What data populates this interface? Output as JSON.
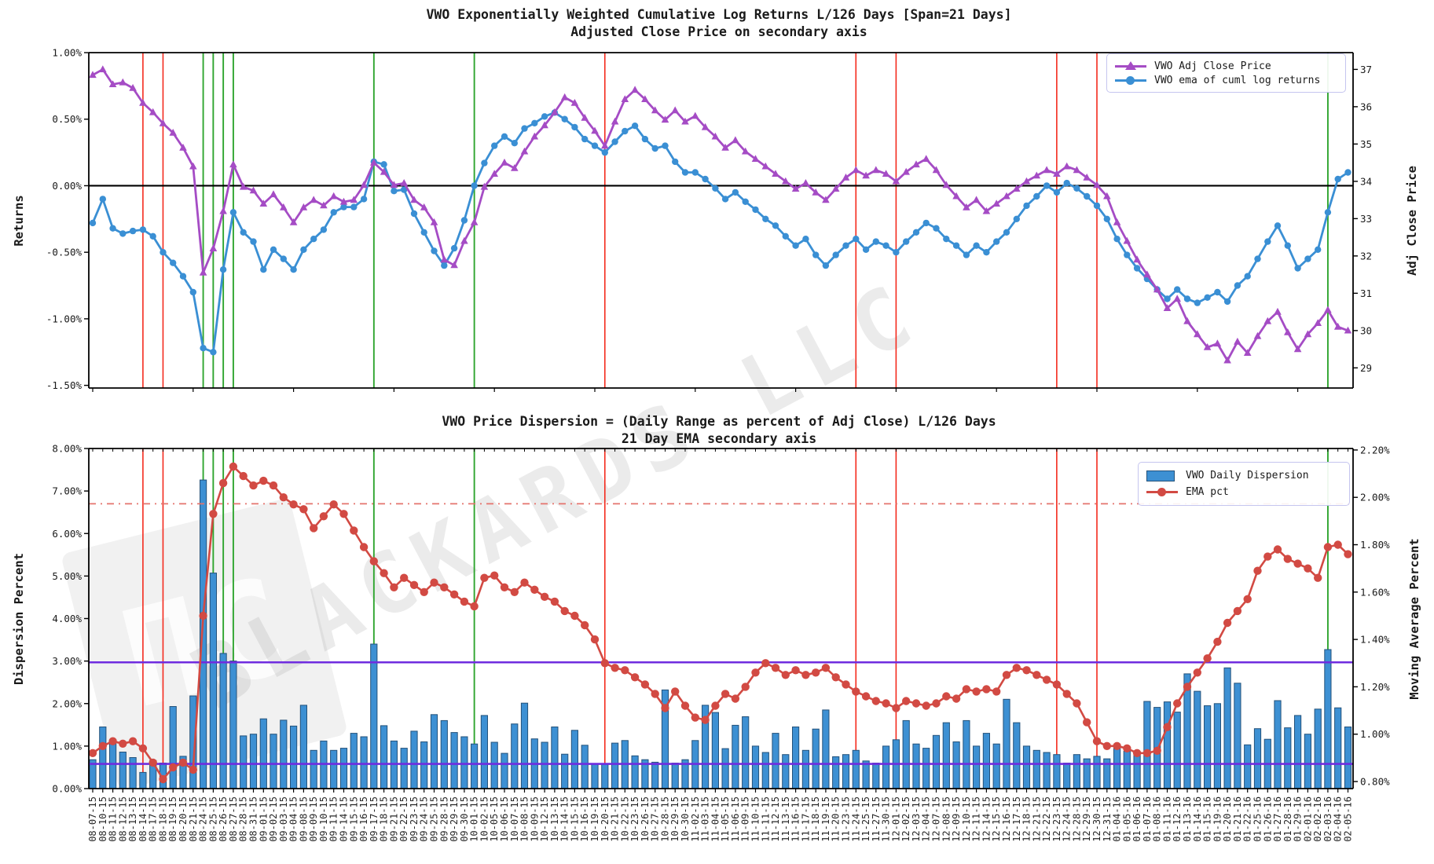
{
  "watermark": {
    "text": "BLACKARDS LLC",
    "logo_glyph": "ΠC"
  },
  "colors": {
    "price_line": "#a54cc5",
    "returns_ema_line": "#3a8fd4",
    "bars_fill": "#3d90d3",
    "bars_edge": "#24527a",
    "ema_pct_line": "#d24a43",
    "vline_red": "#f42a1d",
    "vline_green": "#2fa52f",
    "hline_dashdot": "#e4736c",
    "hline_purple": "#6f2cdf",
    "zero_line": "#000000",
    "text": "#1a1a1a"
  },
  "top_chart": {
    "title1": "VWO Exponentially Weighted Cumulative Log Returns L/126 Days [Span=21 Days]",
    "title2": "Adjusted Close Price on secondary axis",
    "ylabel_left": "Returns",
    "ylabel_right": "Adj Close Price",
    "yticks_left": {
      "labels": [
        "1.00%",
        "0.50%",
        "0.00%",
        "-0.50%",
        "-1.00%",
        "-1.50%"
      ],
      "values": [
        1.0,
        0.5,
        0.0,
        -0.5,
        -1.0,
        -1.5
      ]
    },
    "yticks_right": {
      "labels": [
        "37",
        "36",
        "35",
        "34",
        "33",
        "32",
        "31",
        "30",
        "29"
      ],
      "values": [
        37,
        36,
        35,
        34,
        33,
        32,
        31,
        30,
        29
      ]
    },
    "legend": [
      "VWO Adj Close Price",
      "VWO ema of cuml log returns"
    ]
  },
  "bottom_chart": {
    "title1": "VWO Price Dispersion = (Daily Range as percent of Adj Close) L/126 Days",
    "title2": "21 Day EMA secondary axis",
    "ylabel_left": "Dispersion Percent",
    "ylabel_right": "Moving Average Percent",
    "yticks_left": {
      "labels": [
        "8.00%",
        "7.00%",
        "6.00%",
        "5.00%",
        "4.00%",
        "3.00%",
        "2.00%",
        "1.00%",
        "0.00%"
      ],
      "values": [
        8,
        7,
        6,
        5,
        4,
        3,
        2,
        1,
        0
      ]
    },
    "yticks_right": {
      "labels": [
        "2.20%",
        "2.00%",
        "1.80%",
        "1.60%",
        "1.40%",
        "1.20%",
        "1.00%",
        "0.80%"
      ],
      "values": [
        2.2,
        2.0,
        1.8,
        1.6,
        1.4,
        1.2,
        1.0,
        0.8
      ]
    },
    "legend": [
      "VWO Daily Dispersion",
      "EMA pct"
    ]
  },
  "chart_data": [
    {
      "type": "line",
      "title": "VWO Exponentially Weighted Cumulative Log Returns L/126 Days [Span=21 Days] / Adjusted Close Price on secondary axis",
      "xlabel": "",
      "ylabel": "Returns",
      "ylabel_right": "Adj Close Price",
      "ylim_left": [
        -1.52,
        1.0
      ],
      "ylim_right": [
        28.46,
        37.45
      ],
      "grid": false,
      "legend_position": "upper right",
      "series": [
        {
          "name": "VWO Adj Close Price",
          "axis": "right",
          "marker": "triangle",
          "values": [
            36.85,
            37.0,
            36.6,
            36.65,
            36.5,
            36.1,
            35.85,
            35.55,
            35.3,
            34.9,
            34.4,
            31.55,
            32.2,
            33.2,
            34.45,
            33.85,
            33.75,
            33.4,
            33.65,
            33.3,
            32.9,
            33.3,
            33.5,
            33.35,
            33.6,
            33.45,
            33.5,
            33.9,
            34.5,
            34.25,
            33.9,
            33.95,
            33.5,
            33.3,
            32.9,
            31.9,
            31.75,
            32.4,
            32.9,
            33.85,
            34.2,
            34.5,
            34.35,
            34.8,
            35.2,
            35.5,
            35.85,
            36.25,
            36.1,
            35.7,
            35.35,
            34.95,
            35.6,
            36.2,
            36.45,
            36.2,
            35.9,
            35.65,
            35.9,
            35.6,
            35.75,
            35.45,
            35.2,
            34.9,
            35.1,
            34.8,
            34.6,
            34.4,
            34.2,
            34.0,
            33.8,
            33.95,
            33.7,
            33.5,
            33.8,
            34.1,
            34.3,
            34.15,
            34.3,
            34.2,
            34.0,
            34.25,
            34.45,
            34.6,
            34.3,
            33.9,
            33.6,
            33.3,
            33.5,
            33.2,
            33.4,
            33.6,
            33.8,
            34.0,
            34.15,
            34.3,
            34.2,
            34.4,
            34.3,
            34.1,
            33.9,
            33.6,
            32.9,
            32.4,
            31.9,
            31.5,
            31.1,
            30.6,
            30.85,
            30.25,
            29.9,
            29.55,
            29.65,
            29.2,
            29.7,
            29.4,
            29.85,
            30.25,
            30.5,
            29.95,
            29.5,
            29.9,
            30.2,
            30.55,
            30.1,
            30.0
          ]
        },
        {
          "name": "VWO ema of cuml log returns",
          "axis": "left",
          "marker": "circle",
          "values": [
            -0.28,
            -0.1,
            -0.32,
            -0.36,
            -0.34,
            -0.33,
            -0.38,
            -0.5,
            -0.58,
            -0.68,
            -0.8,
            -1.22,
            -1.25,
            -0.63,
            -0.2,
            -0.35,
            -0.42,
            -0.63,
            -0.48,
            -0.55,
            -0.63,
            -0.48,
            -0.4,
            -0.33,
            -0.2,
            -0.16,
            -0.16,
            -0.1,
            0.18,
            0.16,
            -0.04,
            -0.03,
            -0.21,
            -0.35,
            -0.49,
            -0.6,
            -0.47,
            -0.26,
            0.0,
            0.17,
            0.3,
            0.37,
            0.32,
            0.43,
            0.47,
            0.52,
            0.55,
            0.5,
            0.44,
            0.35,
            0.3,
            0.25,
            0.33,
            0.41,
            0.45,
            0.35,
            0.28,
            0.3,
            0.18,
            0.1,
            0.1,
            0.05,
            -0.02,
            -0.1,
            -0.05,
            -0.12,
            -0.18,
            -0.25,
            -0.3,
            -0.38,
            -0.45,
            -0.4,
            -0.52,
            -0.6,
            -0.52,
            -0.45,
            -0.4,
            -0.48,
            -0.42,
            -0.45,
            -0.5,
            -0.42,
            -0.35,
            -0.28,
            -0.32,
            -0.4,
            -0.45,
            -0.52,
            -0.45,
            -0.5,
            -0.42,
            -0.35,
            -0.25,
            -0.15,
            -0.08,
            0.0,
            -0.05,
            0.02,
            -0.02,
            -0.08,
            -0.15,
            -0.25,
            -0.4,
            -0.52,
            -0.62,
            -0.7,
            -0.78,
            -0.85,
            -0.78,
            -0.85,
            -0.88,
            -0.84,
            -0.8,
            -0.87,
            -0.75,
            -0.68,
            -0.55,
            -0.42,
            -0.3,
            -0.45,
            -0.62,
            -0.55,
            -0.48,
            -0.2,
            0.05,
            0.1
          ]
        }
      ],
      "hlines": [
        {
          "value": 0.0,
          "axis": "left",
          "style": "solid",
          "color": "#000000"
        }
      ]
    },
    {
      "type": "bar+line",
      "title": "VWO Price Dispersion = (Daily Range as percent of Adj Close) L/126 Days / 21 Day EMA secondary axis",
      "xlabel": "",
      "ylabel": "Dispersion Percent",
      "ylabel_right": "Moving Average Percent",
      "ylim_left": [
        0,
        8.0
      ],
      "ylim_right": [
        0.77,
        2.206
      ],
      "grid": false,
      "legend_position": "upper right",
      "series": [
        {
          "name": "VWO Daily Dispersion",
          "axis": "left",
          "kind": "bar",
          "values": [
            0.68,
            1.45,
            1.15,
            0.86,
            0.73,
            0.38,
            0.66,
            0.6,
            1.93,
            0.76,
            2.18,
            7.26,
            5.07,
            3.18,
            3.0,
            1.24,
            1.28,
            1.64,
            1.28,
            1.61,
            1.47,
            1.96,
            0.9,
            1.12,
            0.9,
            0.95,
            1.3,
            1.22,
            3.4,
            1.48,
            1.12,
            0.95,
            1.35,
            1.1,
            1.74,
            1.6,
            1.32,
            1.22,
            1.05,
            1.72,
            1.09,
            0.83,
            1.52,
            2.01,
            1.17,
            1.09,
            1.45,
            0.81,
            1.37,
            1.02,
            0.58,
            0.58,
            1.07,
            1.13,
            0.77,
            0.68,
            0.62,
            2.32,
            0.6,
            0.68,
            1.13,
            1.96,
            1.79,
            0.94,
            1.49,
            1.69,
            1.0,
            0.85,
            1.3,
            0.8,
            1.45,
            0.9,
            1.4,
            1.85,
            0.75,
            0.8,
            0.9,
            0.65,
            0.6,
            1.0,
            1.15,
            1.6,
            1.05,
            0.95,
            1.25,
            1.55,
            1.1,
            1.6,
            1.0,
            1.3,
            1.05,
            2.1,
            1.55,
            1.0,
            0.9,
            0.85,
            0.8,
            0.6,
            0.8,
            0.7,
            0.76,
            0.7,
            0.97,
            0.88,
            0.83,
            2.05,
            1.91,
            2.04,
            1.8,
            2.7,
            2.29,
            1.95,
            2.0,
            2.84,
            2.48,
            1.03,
            1.41,
            1.16,
            2.07,
            1.43,
            1.72,
            1.28,
            1.87,
            3.27,
            1.9,
            1.45
          ]
        },
        {
          "name": "EMA pct",
          "axis": "right",
          "kind": "line",
          "marker": "circle",
          "values": [
            0.92,
            0.95,
            0.97,
            0.96,
            0.97,
            0.94,
            0.88,
            0.81,
            0.86,
            0.88,
            0.85,
            1.5,
            1.93,
            2.06,
            2.13,
            2.09,
            2.05,
            2.07,
            2.05,
            2.0,
            1.97,
            1.95,
            1.87,
            1.92,
            1.97,
            1.93,
            1.86,
            1.79,
            1.73,
            1.68,
            1.62,
            1.66,
            1.63,
            1.6,
            1.64,
            1.62,
            1.59,
            1.56,
            1.54,
            1.66,
            1.67,
            1.62,
            1.6,
            1.64,
            1.61,
            1.58,
            1.56,
            1.52,
            1.5,
            1.46,
            1.4,
            1.3,
            1.28,
            1.27,
            1.24,
            1.21,
            1.17,
            1.11,
            1.18,
            1.12,
            1.07,
            1.06,
            1.12,
            1.17,
            1.15,
            1.2,
            1.26,
            1.3,
            1.28,
            1.25,
            1.27,
            1.25,
            1.26,
            1.28,
            1.24,
            1.21,
            1.18,
            1.16,
            1.14,
            1.13,
            1.11,
            1.14,
            1.13,
            1.12,
            1.13,
            1.16,
            1.15,
            1.19,
            1.18,
            1.19,
            1.18,
            1.25,
            1.28,
            1.27,
            1.25,
            1.23,
            1.21,
            1.17,
            1.13,
            1.05,
            0.97,
            0.95,
            0.95,
            0.94,
            0.92,
            0.92,
            0.93,
            1.03,
            1.13,
            1.2,
            1.26,
            1.32,
            1.39,
            1.47,
            1.52,
            1.57,
            1.69,
            1.75,
            1.78,
            1.74,
            1.72,
            1.7,
            1.66,
            1.79,
            1.8,
            1.76
          ]
        }
      ],
      "hlines": [
        {
          "value": 6.7,
          "axis": "left",
          "style": "dashdot",
          "color": "#e4736c"
        },
        {
          "value": 2.97,
          "axis": "left",
          "style": "solid",
          "color": "#6f2cdf"
        },
        {
          "value": 0.58,
          "axis": "left",
          "style": "solid",
          "color": "#6f2cdf"
        }
      ]
    }
  ],
  "x_dates": [
    "08-07-15",
    "08-10-15",
    "08-11-15",
    "08-12-15",
    "08-13-15",
    "08-14-15",
    "08-17-15",
    "08-18-15",
    "08-19-15",
    "08-20-15",
    "08-21-15",
    "08-24-15",
    "08-25-15",
    "08-26-15",
    "08-27-15",
    "08-28-15",
    "08-31-15",
    "09-01-15",
    "09-02-15",
    "09-03-15",
    "09-04-15",
    "09-08-15",
    "09-09-15",
    "09-10-15",
    "09-11-15",
    "09-14-15",
    "09-15-15",
    "09-16-15",
    "09-17-15",
    "09-18-15",
    "09-21-15",
    "09-22-15",
    "09-23-15",
    "09-24-15",
    "09-25-15",
    "09-28-15",
    "09-29-15",
    "09-30-15",
    "10-01-15",
    "10-02-15",
    "10-05-15",
    "10-06-15",
    "10-07-15",
    "10-08-15",
    "10-09-15",
    "10-12-15",
    "10-13-15",
    "10-14-15",
    "10-15-15",
    "10-16-15",
    "10-19-15",
    "10-20-15",
    "10-21-15",
    "10-22-15",
    "10-23-15",
    "10-26-15",
    "10-27-15",
    "10-28-15",
    "10-29-15",
    "10-30-15",
    "11-02-15",
    "11-03-15",
    "11-04-15",
    "11-05-15",
    "11-06-15",
    "11-09-15",
    "11-10-15",
    "11-11-15",
    "11-12-15",
    "11-13-15",
    "11-16-15",
    "11-17-15",
    "11-18-15",
    "11-19-15",
    "11-20-15",
    "11-23-15",
    "11-24-15",
    "11-25-15",
    "11-27-15",
    "11-30-15",
    "12-01-15",
    "12-02-15",
    "12-03-15",
    "12-04-15",
    "12-07-15",
    "12-08-15",
    "12-09-15",
    "12-10-15",
    "12-11-15",
    "12-14-15",
    "12-15-15",
    "12-16-15",
    "12-17-15",
    "12-18-15",
    "12-21-15",
    "12-22-15",
    "12-23-15",
    "12-24-15",
    "12-28-15",
    "12-29-15",
    "12-30-15",
    "12-31-15",
    "01-04-16",
    "01-05-16",
    "01-06-16",
    "01-07-16",
    "01-08-16",
    "01-11-16",
    "01-12-16",
    "01-13-16",
    "01-14-16",
    "01-15-16",
    "01-19-16",
    "01-20-16",
    "01-21-16",
    "01-22-16",
    "01-25-16",
    "01-26-16",
    "01-27-16",
    "01-28-16",
    "01-29-16",
    "02-01-16",
    "02-02-16",
    "02-03-16",
    "02-04-16",
    "02-05-16"
  ],
  "event_vlines": [
    {
      "date": "08-14-15",
      "color": "red"
    },
    {
      "date": "08-18-15",
      "color": "red"
    },
    {
      "date": "08-24-15",
      "color": "green"
    },
    {
      "date": "08-25-15",
      "color": "green"
    },
    {
      "date": "08-26-15",
      "color": "green"
    },
    {
      "date": "08-27-15",
      "color": "green"
    },
    {
      "date": "09-17-15",
      "color": "green"
    },
    {
      "date": "10-01-15",
      "color": "green"
    },
    {
      "date": "10-20-15",
      "color": "red"
    },
    {
      "date": "11-24-15",
      "color": "red"
    },
    {
      "date": "12-01-15",
      "color": "red"
    },
    {
      "date": "12-23-15",
      "color": "red"
    },
    {
      "date": "12-30-15",
      "color": "red"
    },
    {
      "date": "02-03-16",
      "color": "green"
    }
  ]
}
